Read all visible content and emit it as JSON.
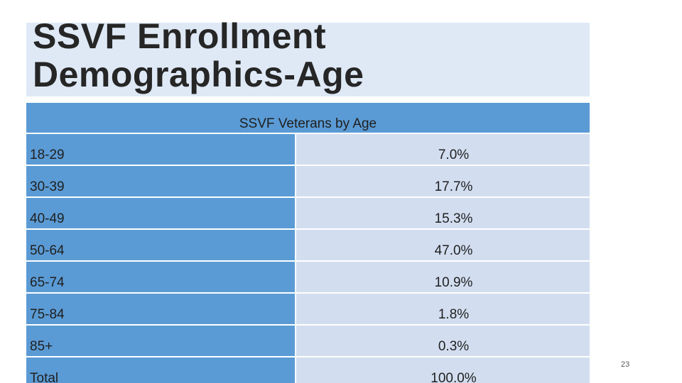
{
  "slide": {
    "title": "SSVF Enrollment Demographics-Age",
    "page_number": "23"
  },
  "table": {
    "header": "SSVF Veterans by Age",
    "rows": [
      {
        "age": "18-29",
        "percent": "7.0%"
      },
      {
        "age": "30-39",
        "percent": "17.7%"
      },
      {
        "age": "40-49",
        "percent": "15.3%"
      },
      {
        "age": "50-64",
        "percent": "47.0%"
      },
      {
        "age": "65-74",
        "percent": "10.9%"
      },
      {
        "age": "75-84",
        "percent": "1.8%"
      },
      {
        "age": "85+",
        "percent": "0.3%"
      },
      {
        "age": "Total",
        "percent": "100.0%"
      }
    ]
  },
  "colors": {
    "title_background": "#dfe9f6",
    "header_background": "#5b9bd5",
    "age_column_background": "#5b9bd5",
    "percent_column_background": "#d2def0"
  }
}
